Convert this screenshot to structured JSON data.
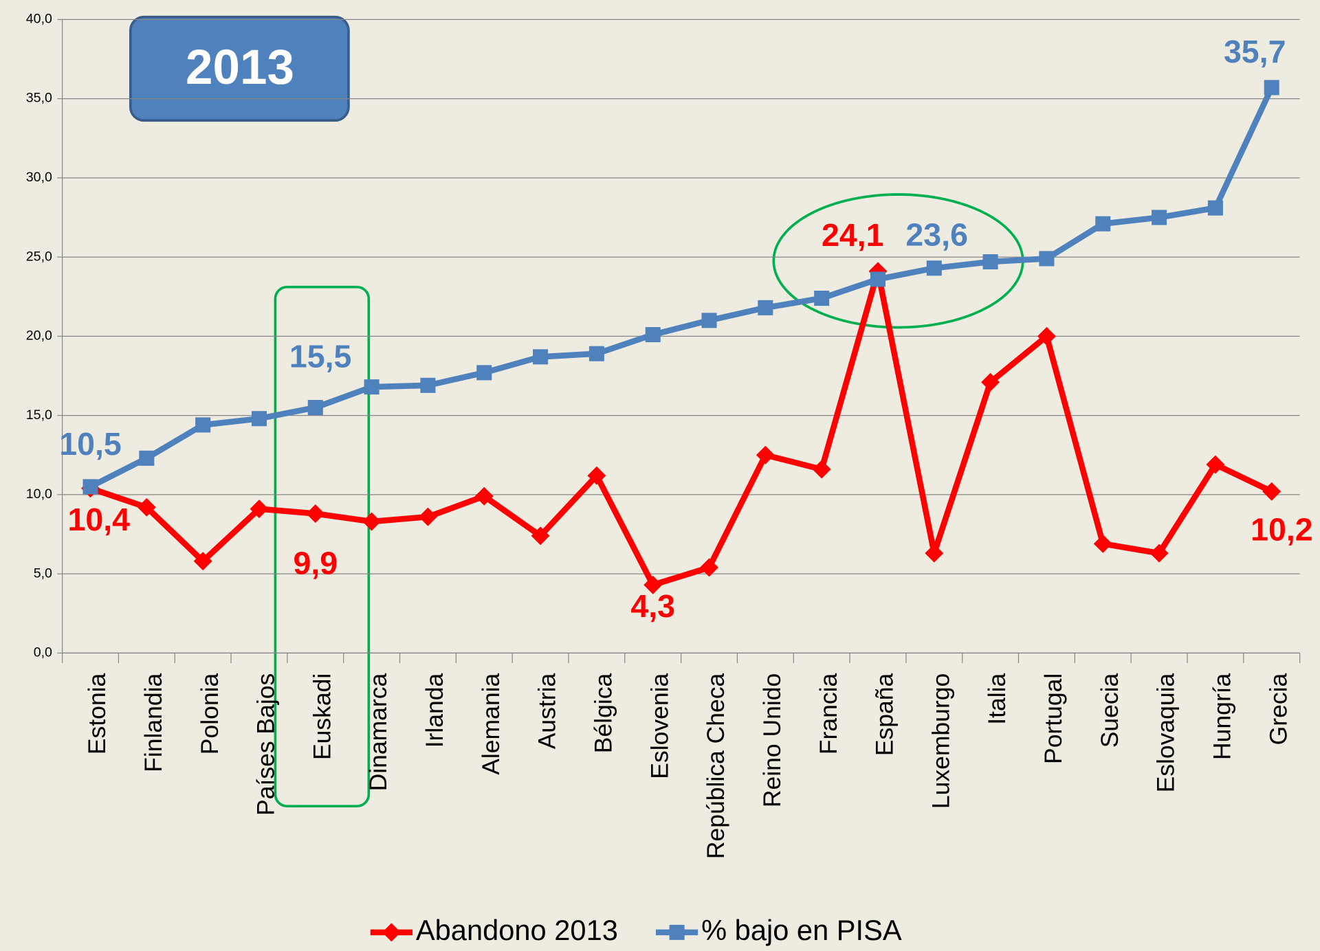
{
  "chart_data": {
    "type": "line",
    "title": "2013",
    "categories": [
      "Estonia",
      "Finlandia",
      "Polonia",
      "Países Bajos",
      "Euskadi",
      "Dinamarca",
      "Irlanda",
      "Alemania",
      "Austria",
      "Bélgica",
      "Eslovenia",
      "República Checa",
      "Reino Unido",
      "Francia",
      "España",
      "Luxemburgo",
      "Italia",
      "Portugal",
      "Suecia",
      "Eslovaquia",
      "Hungría",
      "Grecia"
    ],
    "series": [
      {
        "name": "Abandono 2013",
        "color": "#ff0000",
        "marker": "diamond",
        "values": [
          10.4,
          9.2,
          5.8,
          9.1,
          8.8,
          8.3,
          8.6,
          9.9,
          7.4,
          11.2,
          4.3,
          5.4,
          12.5,
          11.6,
          24.1,
          6.3,
          17.1,
          20.0,
          6.9,
          6.3,
          11.9,
          10.2
        ],
        "value_labels": [
          "10,4",
          null,
          null,
          null,
          null,
          null,
          null,
          null,
          null,
          null,
          "4,3",
          null,
          null,
          null,
          "24,1",
          null,
          null,
          null,
          null,
          null,
          null,
          "10,2"
        ]
      },
      {
        "name": "% bajo en PISA",
        "color": "#4f81bd",
        "marker": "square",
        "values": [
          10.5,
          12.3,
          14.4,
          14.8,
          15.5,
          16.8,
          16.9,
          17.7,
          18.7,
          18.9,
          20.1,
          21.0,
          21.8,
          22.4,
          23.6,
          24.3,
          24.7,
          24.9,
          27.1,
          27.5,
          28.1,
          35.7
        ],
        "value_labels": [
          "10,5",
          null,
          null,
          null,
          "15,5",
          null,
          null,
          null,
          null,
          null,
          null,
          null,
          null,
          null,
          "23,6",
          null,
          null,
          null,
          null,
          null,
          null,
          "35,7"
        ]
      }
    ],
    "annotations": [
      "9,9"
    ],
    "ylim": [
      0,
      40
    ],
    "yticks": [
      {
        "value": 0,
        "label": "0,0"
      },
      {
        "value": 5,
        "label": "5,0"
      },
      {
        "value": 10,
        "label": "10,0"
      },
      {
        "value": 15,
        "label": "15,0"
      },
      {
        "value": 20,
        "label": "20,0"
      },
      {
        "value": 25,
        "label": "25,0"
      },
      {
        "value": 30,
        "label": "30,0"
      },
      {
        "value": 35,
        "label": "35,0"
      },
      {
        "value": 40,
        "label": "40,0"
      }
    ],
    "grid": true,
    "legend": "bottom"
  }
}
